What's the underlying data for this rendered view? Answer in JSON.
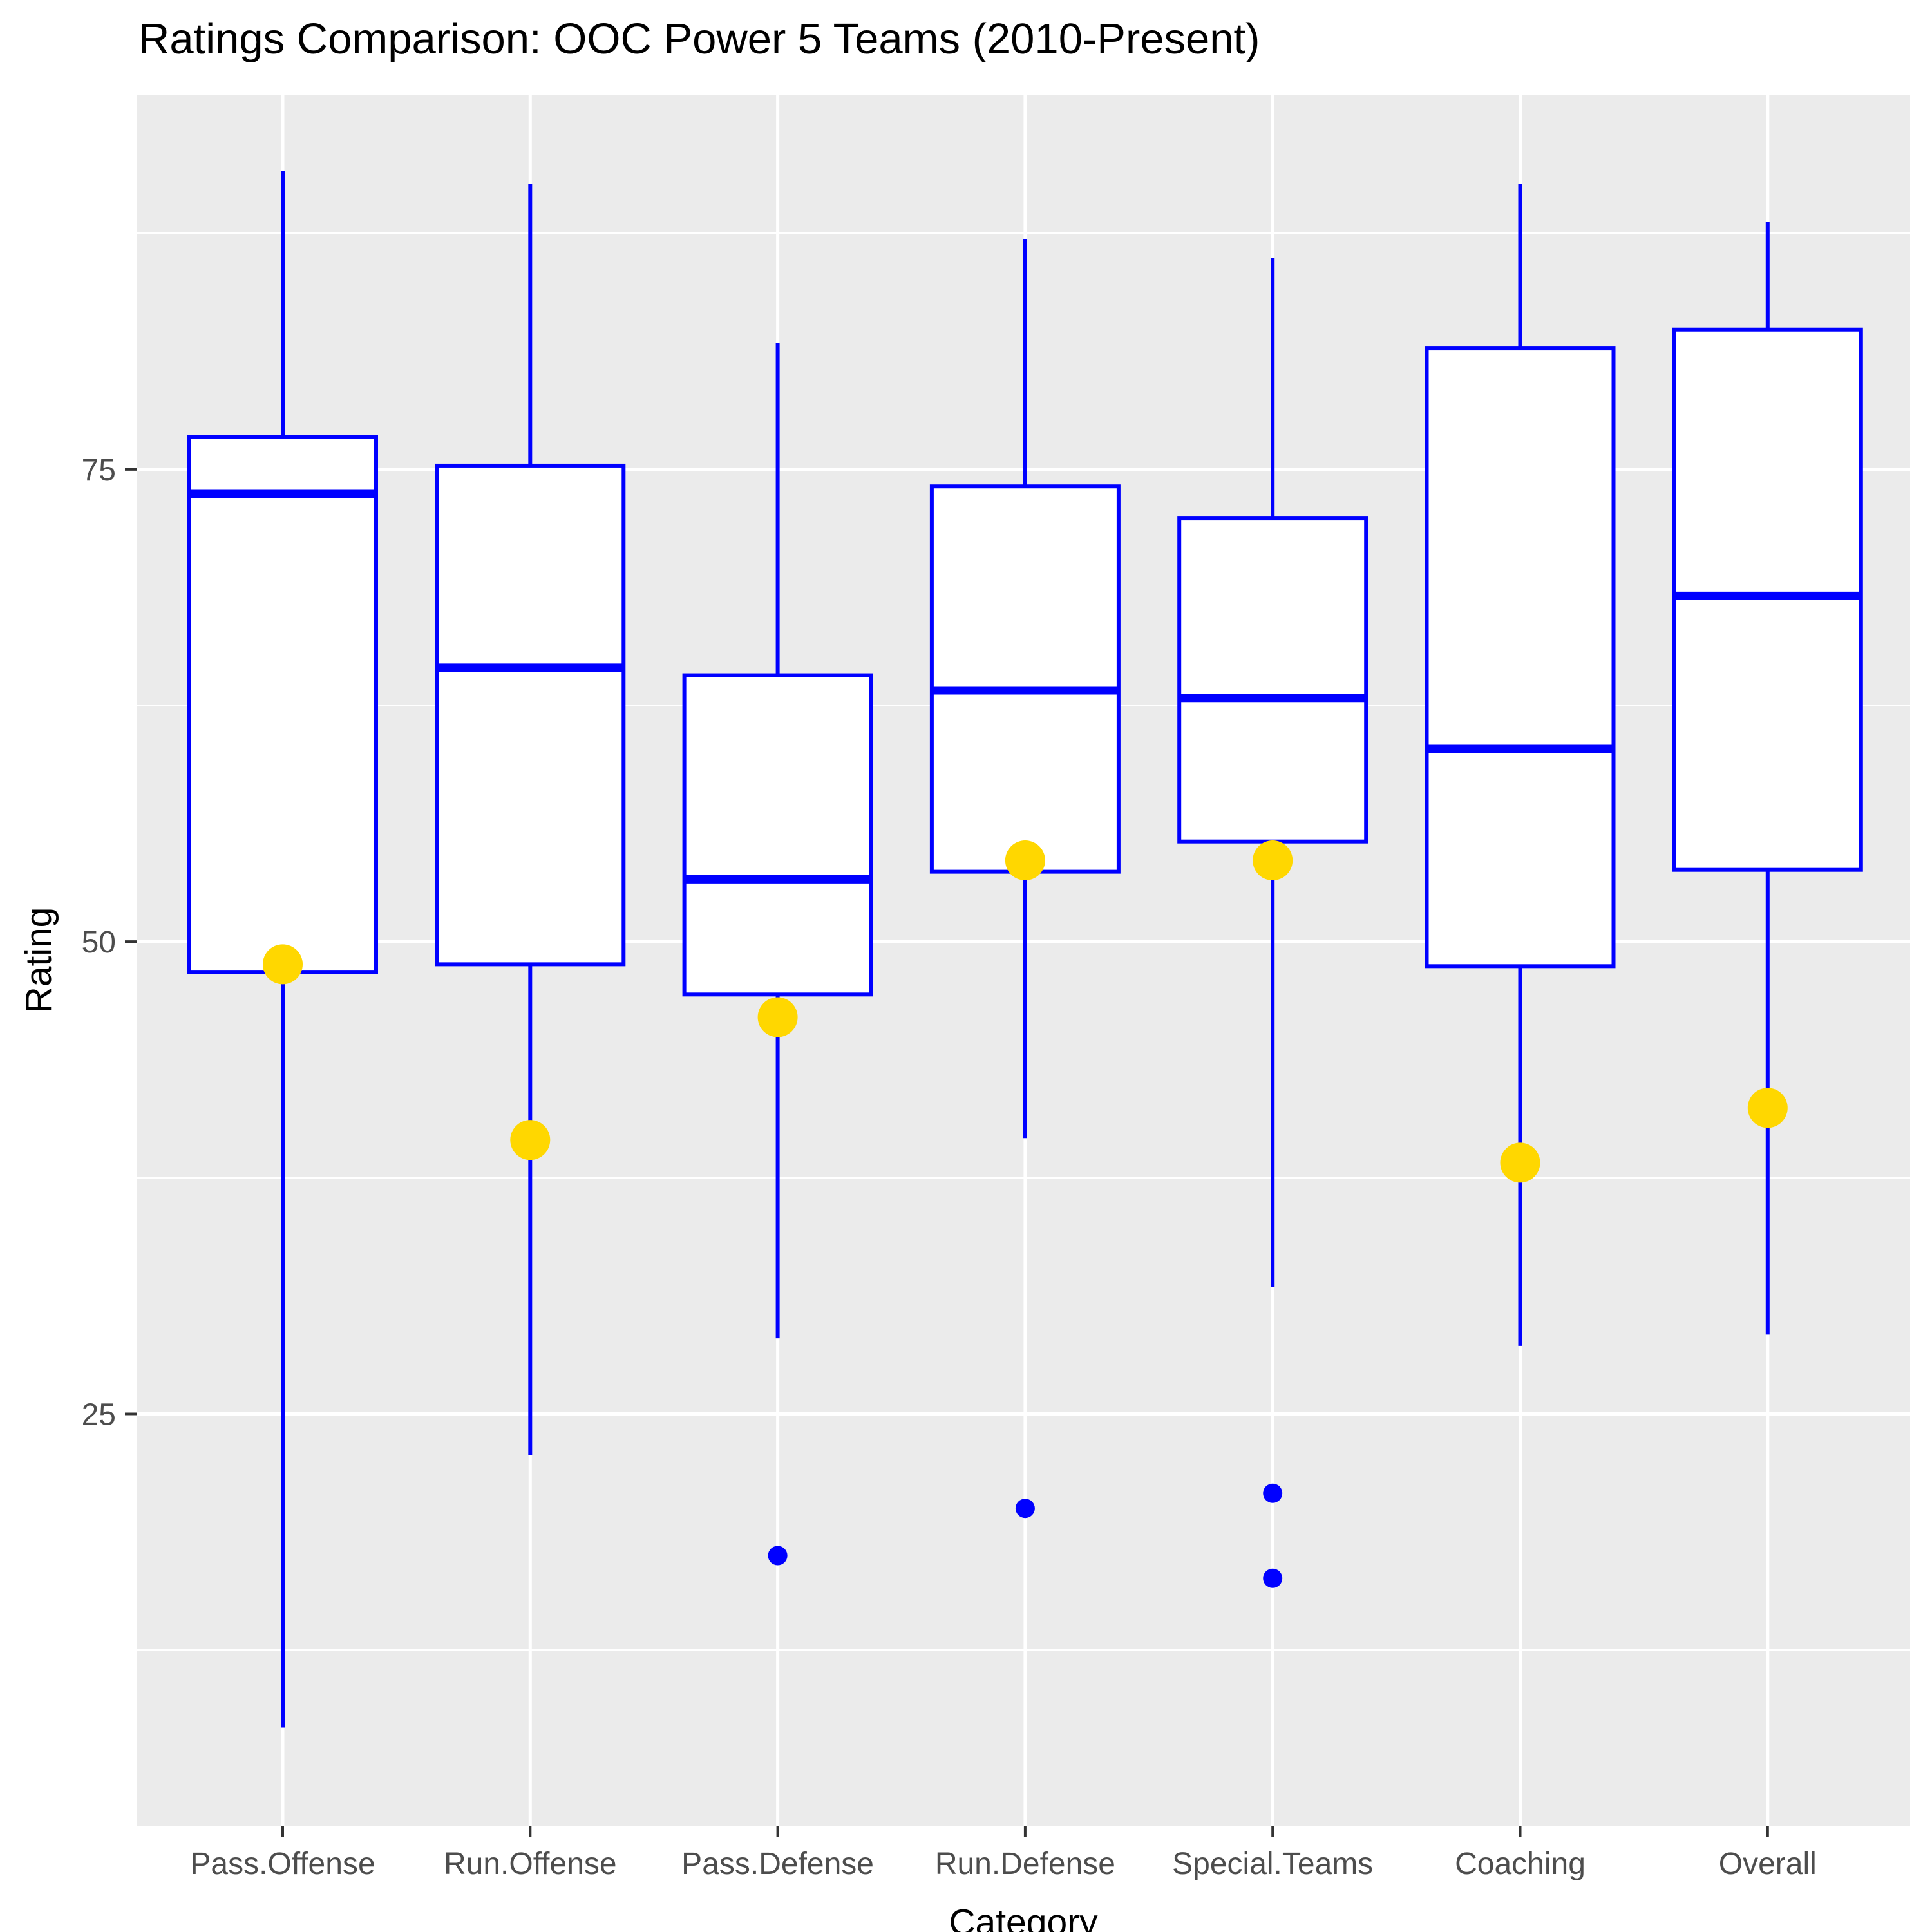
{
  "chart": {
    "title": "Ratings Comparison: OOC Power 5 Teams (2010-Present)",
    "xlabel": "Category",
    "ylabel": "Rating"
  },
  "chart_data": {
    "type": "boxplot",
    "title": "Ratings Comparison: OOC Power 5 Teams (2010-Present)",
    "xlabel": "Category",
    "ylabel": "Rating",
    "categories": [
      "Pass.Offense",
      "Run.Offense",
      "Pass.Defense",
      "Run.Defense",
      "Special.Teams",
      "Coaching",
      "Overall"
    ],
    "ylim": [
      3.2,
      94.8
    ],
    "y_ticks": [
      25,
      50,
      75
    ],
    "y_minor_ticks": [
      12.5,
      37.5,
      62.5,
      87.5
    ],
    "grid": "on",
    "legend": "none",
    "series": [
      {
        "category": "Pass.Offense",
        "whisker_low": 8.4,
        "q1": 48.4,
        "median": 73.7,
        "q3": 76.7,
        "whisker_high": 90.8,
        "mean_point": 48.8,
        "outliers": []
      },
      {
        "category": "Run.Offense",
        "whisker_low": 22.8,
        "q1": 48.8,
        "median": 64.5,
        "q3": 75.2,
        "whisker_high": 90.1,
        "mean_point": 39.5,
        "outliers": []
      },
      {
        "category": "Pass.Defense",
        "whisker_low": 29.0,
        "q1": 47.2,
        "median": 53.3,
        "q3": 64.1,
        "whisker_high": 81.7,
        "mean_point": 46.0,
        "outliers": [
          17.5
        ]
      },
      {
        "category": "Run.Defense",
        "whisker_low": 39.6,
        "q1": 53.7,
        "median": 63.3,
        "q3": 74.1,
        "whisker_high": 87.2,
        "mean_point": 54.3,
        "outliers": [
          20.0
        ]
      },
      {
        "category": "Special.Teams",
        "whisker_low": 31.7,
        "q1": 55.3,
        "median": 62.9,
        "q3": 72.4,
        "whisker_high": 86.2,
        "mean_point": 54.3,
        "outliers": [
          20.8,
          16.3
        ]
      },
      {
        "category": "Coaching",
        "whisker_low": 28.6,
        "q1": 48.7,
        "median": 60.2,
        "q3": 81.4,
        "whisker_high": 90.1,
        "mean_point": 38.3,
        "outliers": []
      },
      {
        "category": "Overall",
        "whisker_low": 29.2,
        "q1": 53.8,
        "median": 68.3,
        "q3": 82.4,
        "whisker_high": 88.1,
        "mean_point": 41.2,
        "outliers": []
      }
    ],
    "colors": {
      "box_border": "#0000FF",
      "box_fill": "#FFFFFF",
      "median": "#0000FF",
      "whisker": "#0000FF",
      "outlier": "#0000FF",
      "mean_point": "#FFD700",
      "panel_background": "#EBEBEB",
      "gridline": "#FFFFFF",
      "axis_text": "#4D4D4D",
      "tick_mark": "#333333",
      "title_text": "#000000"
    }
  }
}
